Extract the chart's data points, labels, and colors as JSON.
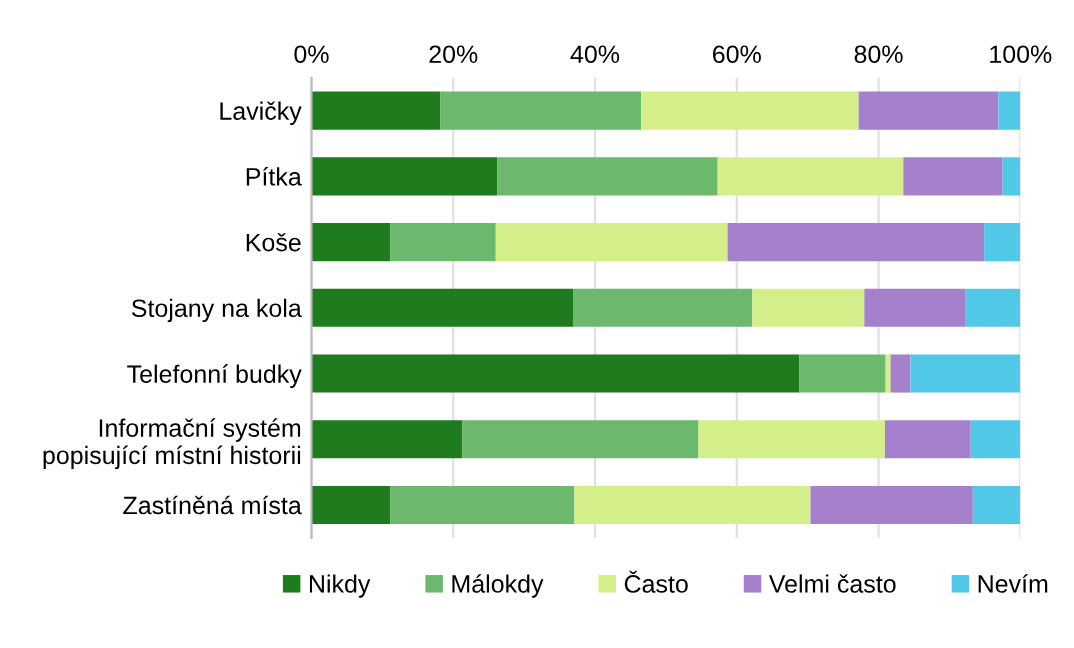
{
  "chart_data": {
    "type": "bar",
    "orientation": "horizontal",
    "stacked": true,
    "categories": [
      "Lavičky",
      "Pítka",
      "Koše",
      "Stojany na kola",
      "Telefonní budky",
      "Informační systém\npopisující místní historii",
      "Zastíněná místa"
    ],
    "series": [
      {
        "name": "Nikdy",
        "color": "#1e7b1e",
        "values": [
          18.2,
          26.2,
          11.1,
          36.9,
          68.8,
          21.3,
          11.1
        ]
      },
      {
        "name": "Málokdy",
        "color": "#6cb86c",
        "values": [
          28.3,
          31.1,
          14.9,
          25.3,
          12.2,
          33.3,
          26.0
        ]
      },
      {
        "name": "Často",
        "color": "#d4ef8a",
        "values": [
          30.7,
          26.2,
          32.7,
          15.8,
          0.7,
          26.3,
          33.3
        ]
      },
      {
        "name": "Velmi často",
        "color": "#a580cc",
        "values": [
          19.7,
          14.0,
          36.2,
          14.3,
          2.8,
          12.1,
          22.9
        ]
      },
      {
        "name": "Nevím",
        "color": "#52c8e8",
        "values": [
          3.1,
          2.5,
          5.1,
          7.7,
          15.5,
          7.0,
          6.7
        ]
      }
    ],
    "xlim": [
      0,
      100
    ],
    "xticks": [
      {
        "value": 0,
        "label": "0%"
      },
      {
        "value": 20,
        "label": "20%"
      },
      {
        "value": 40,
        "label": "40%"
      },
      {
        "value": 60,
        "label": "60%"
      },
      {
        "value": 80,
        "label": "80%"
      },
      {
        "value": 100,
        "label": "100%"
      }
    ],
    "grid": "x",
    "legend": "bottom"
  }
}
